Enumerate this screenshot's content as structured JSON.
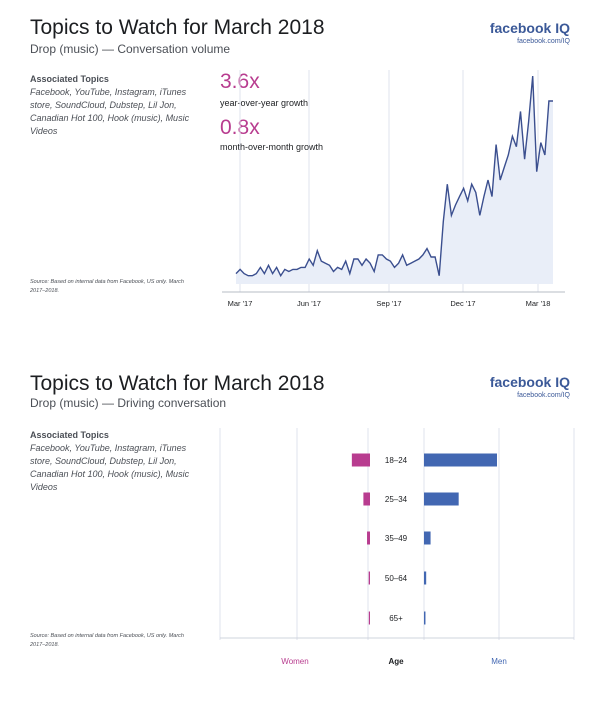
{
  "brand": {
    "name": "facebook IQ",
    "url": "facebook.com/IQ"
  },
  "panel1": {
    "title": "Topics to Watch for March 2018",
    "subtitle": "Drop (music) — Conversation volume",
    "associated_heading": "Associated Topics",
    "associated_list": "Facebook, YouTube, Instagram, iTunes store, SoundCloud, Dubstep, Lil Jon, Canadian Hot 100, Hook (music), Music Videos",
    "source": "Source: Based on internal data from Facebook, US only. March 2017–2018.",
    "stats": [
      {
        "value": "3.6x",
        "label": "year-over-year growth"
      },
      {
        "value": "0.8x",
        "label": "month-over-month growth"
      }
    ]
  },
  "panel2": {
    "title": "Topics to Watch for March 2018",
    "subtitle": "Drop (music) — Driving conversation",
    "associated_heading": "Associated Topics",
    "associated_list": "Facebook, YouTube, Instagram, iTunes store, SoundCloud, Dubstep, Lil Jon, Canadian Hot 100, Hook (music), Music Videos",
    "source": "Source: Based on internal data from Facebook, US only. March 2017–2018."
  },
  "colors": {
    "line": "#3b4f8f",
    "area": "#e9eef8",
    "grid": "#dfe3ec",
    "women": "#b83c8f",
    "men": "#4267b2",
    "stat": "#b83c8f"
  },
  "chart_data": [
    {
      "type": "area",
      "title": "Drop (music) — Conversation volume",
      "x_tick_labels": [
        "Mar '17",
        "Jun '17",
        "Sep '17",
        "Dec '17",
        "Mar '18"
      ],
      "grid": "vertical",
      "y_axis_labels": "none",
      "series": [
        {
          "values": [
            5,
            7,
            5,
            4,
            4,
            5,
            8,
            5,
            9,
            5,
            8,
            4,
            7,
            6,
            7,
            7,
            8,
            8,
            12,
            9,
            16,
            11,
            10,
            9,
            6,
            8,
            7,
            11,
            5,
            12,
            12,
            9,
            12,
            10,
            6,
            14,
            14,
            12,
            11,
            8,
            10,
            14,
            9,
            10,
            11,
            12,
            14,
            17,
            13,
            13,
            4,
            30,
            48,
            33,
            38,
            42,
            46,
            40,
            48,
            44,
            33,
            42,
            50,
            42,
            67,
            50,
            56,
            62,
            71,
            66,
            83,
            60,
            78,
            100,
            54,
            68,
            62,
            88,
            88
          ]
        }
      ]
    },
    {
      "type": "bar",
      "orientation": "horizontal",
      "title": "Drop (music) — Driving conversation",
      "xlabel": "Age",
      "categories": [
        "18–24",
        "25–34",
        "35–49",
        "50–64",
        "65+"
      ],
      "series": [
        {
          "name": "Women",
          "values": [
            5.5,
            2.0,
            0.9,
            0.4,
            0.2
          ]
        },
        {
          "name": "Men",
          "values": [
            20.0,
            9.5,
            1.8,
            0.6,
            0.4
          ]
        }
      ]
    }
  ]
}
